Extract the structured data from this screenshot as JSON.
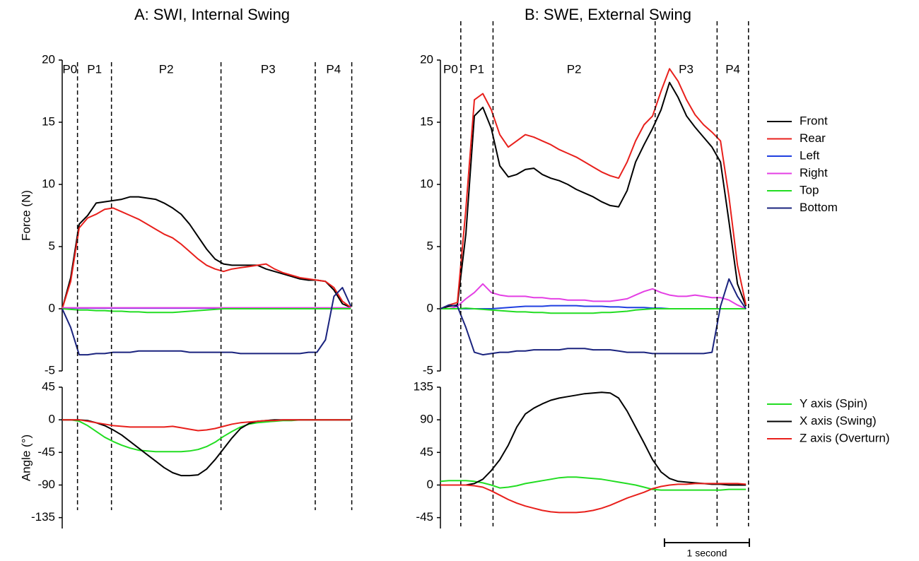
{
  "chart_data": [
    {
      "type": "line",
      "title": "A: SWI, Internal Swing",
      "ylabel": "Force (N)",
      "x": [
        0,
        0.1,
        0.2,
        0.3,
        0.4,
        0.5,
        0.6,
        0.7,
        0.8,
        0.9,
        1.0,
        1.1,
        1.2,
        1.3,
        1.4,
        1.5,
        1.6,
        1.7,
        1.8,
        1.9,
        2.0,
        2.1,
        2.2,
        2.3,
        2.4,
        2.5,
        2.6,
        2.7,
        2.8,
        2.9,
        3.0,
        3.1,
        3.2,
        3.3,
        3.4
      ],
      "xlim": [
        0,
        3.43
      ],
      "ylim": [
        -5,
        20
      ],
      "yticks": [
        -5,
        0,
        5,
        10,
        15,
        20
      ],
      "phases": {
        "labels": [
          "P0",
          "P1",
          "P2",
          "P3",
          "P4"
        ],
        "bounds": [
          0.18,
          0.58,
          1.87,
          2.98,
          3.41
        ]
      },
      "series": [
        {
          "color": "#000000",
          "values": [
            0,
            2.5,
            6.8,
            7.5,
            8.5,
            8.6,
            8.7,
            8.8,
            9.0,
            9.0,
            8.9,
            8.8,
            8.5,
            8.1,
            7.6,
            6.8,
            5.8,
            4.8,
            4.0,
            3.6,
            3.5,
            3.5,
            3.5,
            3.5,
            3.2,
            3.0,
            2.8,
            2.6,
            2.4,
            2.3,
            2.3,
            2.2,
            1.5,
            0.4,
            0.1
          ]
        },
        {
          "color": "#e8201c",
          "values": [
            0,
            2.2,
            6.5,
            7.3,
            7.6,
            8.0,
            8.1,
            7.8,
            7.5,
            7.2,
            6.8,
            6.4,
            6.0,
            5.7,
            5.2,
            4.6,
            4.0,
            3.5,
            3.2,
            3.0,
            3.2,
            3.3,
            3.4,
            3.5,
            3.6,
            3.2,
            2.9,
            2.7,
            2.5,
            2.4,
            2.3,
            2.2,
            1.7,
            0.6,
            0.1
          ]
        },
        {
          "color": "#1f3fe0",
          "values": [
            0.05,
            0.05,
            0.05,
            0.05,
            0.05,
            0.05,
            0.05,
            0.05,
            0.05,
            0.05,
            0.05,
            0.05,
            0.05,
            0.05,
            0.05,
            0.05,
            0.05,
            0.05,
            0.05,
            0.05,
            0.05,
            0.05,
            0.05,
            0.05,
            0.05,
            0.05,
            0.05,
            0.05,
            0.05,
            0.05,
            0.05,
            0.05,
            0.05,
            0.05,
            0.05
          ]
        },
        {
          "color": "#e43fe4",
          "values": [
            0.08,
            0.08,
            0.08,
            0.08,
            0.08,
            0.08,
            0.08,
            0.08,
            0.08,
            0.08,
            0.08,
            0.08,
            0.08,
            0.08,
            0.08,
            0.08,
            0.08,
            0.08,
            0.08,
            0.08,
            0.08,
            0.08,
            0.08,
            0.08,
            0.08,
            0.08,
            0.08,
            0.08,
            0.08,
            0.08,
            0.08,
            0.08,
            0.08,
            0.08,
            0.08
          ]
        },
        {
          "color": "#22dd22",
          "values": [
            0,
            -0.05,
            -0.1,
            -0.1,
            -0.15,
            -0.15,
            -0.2,
            -0.2,
            -0.25,
            -0.25,
            -0.3,
            -0.3,
            -0.3,
            -0.3,
            -0.25,
            -0.2,
            -0.15,
            -0.1,
            -0.05,
            0,
            0,
            0,
            0,
            0,
            0,
            0,
            0,
            0,
            0,
            0,
            0,
            0,
            0,
            0,
            0
          ]
        },
        {
          "color": "#1a237e",
          "values": [
            0,
            -1.5,
            -3.7,
            -3.7,
            -3.6,
            -3.6,
            -3.5,
            -3.5,
            -3.5,
            -3.4,
            -3.4,
            -3.4,
            -3.4,
            -3.4,
            -3.4,
            -3.5,
            -3.5,
            -3.5,
            -3.5,
            -3.5,
            -3.5,
            -3.6,
            -3.6,
            -3.6,
            -3.6,
            -3.6,
            -3.6,
            -3.6,
            -3.6,
            -3.5,
            -3.5,
            -2.5,
            1.0,
            1.7,
            0.2
          ]
        }
      ]
    },
    {
      "type": "line",
      "ylabel": "Angle (°)",
      "x": [
        0,
        0.1,
        0.2,
        0.3,
        0.4,
        0.5,
        0.6,
        0.7,
        0.8,
        0.9,
        1.0,
        1.1,
        1.2,
        1.3,
        1.4,
        1.5,
        1.6,
        1.7,
        1.8,
        1.9,
        2.0,
        2.1,
        2.2,
        2.3,
        2.4,
        2.5,
        2.6,
        2.7,
        2.8,
        2.9,
        3.0,
        3.1,
        3.2,
        3.3,
        3.4
      ],
      "xlim": [
        0,
        3.43
      ],
      "ylim": [
        -150,
        45
      ],
      "yticks": [
        -135,
        -90,
        -45,
        0,
        45
      ],
      "series": [
        {
          "color": "#22dd22",
          "values": [
            0,
            0,
            -2,
            -8,
            -16,
            -24,
            -30,
            -35,
            -39,
            -42,
            -43,
            -44,
            -44,
            -44,
            -44,
            -43,
            -41,
            -37,
            -31,
            -23,
            -16,
            -10,
            -6,
            -4,
            -3,
            -2,
            -1,
            -1,
            0,
            0,
            0,
            0,
            0,
            0,
            0
          ]
        },
        {
          "color": "#000000",
          "values": [
            0,
            0,
            0,
            -1,
            -4,
            -8,
            -14,
            -21,
            -30,
            -39,
            -48,
            -57,
            -66,
            -73,
            -77,
            -77,
            -76,
            -68,
            -55,
            -40,
            -25,
            -12,
            -5,
            -2,
            -1,
            0,
            0,
            0,
            0,
            0,
            0,
            0,
            0,
            0,
            0
          ]
        },
        {
          "color": "#e8201c",
          "values": [
            0,
            0,
            0,
            -2,
            -4,
            -6,
            -8,
            -9,
            -10,
            -10,
            -10,
            -10,
            -10,
            -9,
            -11,
            -13,
            -15,
            -14,
            -12,
            -9,
            -6,
            -4,
            -3,
            -2,
            -1,
            -1,
            0,
            0,
            0,
            0,
            0,
            0,
            0,
            0,
            0
          ]
        }
      ]
    },
    {
      "type": "line",
      "title": "B: SWE, External Swing",
      "x": [
        0,
        0.1,
        0.2,
        0.3,
        0.4,
        0.5,
        0.6,
        0.7,
        0.8,
        0.9,
        1.0,
        1.1,
        1.2,
        1.3,
        1.4,
        1.5,
        1.6,
        1.7,
        1.8,
        1.9,
        2.0,
        2.1,
        2.2,
        2.3,
        2.4,
        2.5,
        2.6,
        2.7,
        2.8,
        2.9,
        3.0,
        3.1,
        3.2,
        3.3,
        3.4,
        3.5,
        3.6
      ],
      "xlim": [
        0,
        3.64
      ],
      "ylim": [
        -5,
        20
      ],
      "yticks": [
        -5,
        0,
        5,
        10,
        15,
        20
      ],
      "legend": "right",
      "phases": {
        "labels": [
          "P0",
          "P1",
          "P2",
          "P3",
          "P4"
        ],
        "bounds": [
          0.24,
          0.62,
          2.53,
          3.26,
          3.63
        ]
      },
      "series": [
        {
          "name": "Front",
          "color": "#000000",
          "values": [
            0,
            0.2,
            0.3,
            6,
            15.5,
            16.2,
            14.5,
            11.5,
            10.6,
            10.8,
            11.2,
            11.3,
            10.8,
            10.5,
            10.3,
            10.0,
            9.6,
            9.3,
            9.0,
            8.6,
            8.3,
            8.2,
            9.5,
            11.8,
            13.2,
            14.5,
            16.0,
            18.2,
            17.0,
            15.5,
            14.6,
            13.8,
            13.0,
            11.8,
            7.0,
            2.0,
            0.2
          ]
        },
        {
          "name": "Rear",
          "color": "#e8201c",
          "values": [
            0,
            0.3,
            0.5,
            8,
            16.8,
            17.3,
            16.0,
            14.0,
            13.0,
            13.5,
            14.0,
            13.8,
            13.5,
            13.2,
            12.8,
            12.5,
            12.2,
            11.8,
            11.4,
            11.0,
            10.7,
            10.5,
            11.8,
            13.5,
            14.8,
            15.5,
            17.5,
            19.3,
            18.3,
            16.8,
            15.6,
            14.8,
            14.2,
            13.5,
            9.0,
            3.5,
            0.3
          ]
        },
        {
          "name": "Left",
          "color": "#1f3fe0",
          "values": [
            0,
            0,
            0,
            0,
            0,
            0,
            0,
            0.05,
            0.1,
            0.15,
            0.2,
            0.2,
            0.2,
            0.25,
            0.25,
            0.25,
            0.25,
            0.2,
            0.2,
            0.2,
            0.15,
            0.15,
            0.1,
            0.1,
            0.1,
            0.05,
            0.05,
            0,
            0,
            0,
            0,
            0,
            0,
            0,
            0,
            0,
            0
          ]
        },
        {
          "name": "Right",
          "color": "#e43fe4",
          "values": [
            0,
            0,
            0.2,
            0.8,
            1.3,
            2.0,
            1.3,
            1.1,
            1.0,
            1.0,
            1.0,
            0.9,
            0.9,
            0.8,
            0.8,
            0.7,
            0.7,
            0.7,
            0.6,
            0.6,
            0.6,
            0.7,
            0.8,
            1.1,
            1.4,
            1.6,
            1.3,
            1.1,
            1.0,
            1.0,
            1.1,
            1.0,
            0.9,
            0.9,
            0.7,
            0.3,
            0
          ]
        },
        {
          "name": "Top",
          "color": "#22dd22",
          "values": [
            0,
            0,
            0,
            0.05,
            0,
            -0.05,
            -0.1,
            -0.15,
            -0.2,
            -0.25,
            -0.25,
            -0.3,
            -0.3,
            -0.35,
            -0.35,
            -0.35,
            -0.35,
            -0.35,
            -0.35,
            -0.3,
            -0.3,
            -0.25,
            -0.2,
            -0.1,
            -0.05,
            0,
            0,
            0,
            0,
            0,
            0,
            0,
            0,
            0,
            0,
            0,
            0
          ]
        },
        {
          "name": "Bottom",
          "color": "#1a237e",
          "values": [
            0,
            0.3,
            0.2,
            -1.5,
            -3.5,
            -3.7,
            -3.6,
            -3.5,
            -3.5,
            -3.4,
            -3.4,
            -3.3,
            -3.3,
            -3.3,
            -3.3,
            -3.2,
            -3.2,
            -3.2,
            -3.3,
            -3.3,
            -3.3,
            -3.4,
            -3.5,
            -3.5,
            -3.5,
            -3.6,
            -3.6,
            -3.6,
            -3.6,
            -3.6,
            -3.6,
            -3.6,
            -3.5,
            0.2,
            2.4,
            1.0,
            0
          ]
        }
      ]
    },
    {
      "type": "line",
      "x": [
        0,
        0.1,
        0.2,
        0.3,
        0.4,
        0.5,
        0.6,
        0.7,
        0.8,
        0.9,
        1.0,
        1.1,
        1.2,
        1.3,
        1.4,
        1.5,
        1.6,
        1.7,
        1.8,
        1.9,
        2.0,
        2.1,
        2.2,
        2.3,
        2.4,
        2.5,
        2.6,
        2.7,
        2.8,
        2.9,
        3.0,
        3.1,
        3.2,
        3.3,
        3.4,
        3.5,
        3.6
      ],
      "xlim": [
        0,
        3.64
      ],
      "ylim": [
        -60,
        135
      ],
      "yticks": [
        -45,
        0,
        45,
        90,
        135
      ],
      "legend": "right",
      "scale_bar": {
        "value": 1,
        "label": "1 second"
      },
      "series": [
        {
          "name": "Y axis (Spin)",
          "color": "#22dd22",
          "values": [
            5,
            6,
            6,
            6,
            5,
            3,
            0,
            -4,
            -3,
            -1,
            2,
            4,
            6,
            8,
            10,
            11,
            11,
            10,
            9,
            8,
            6,
            4,
            2,
            0,
            -3,
            -6,
            -7,
            -7,
            -7,
            -7,
            -7,
            -7,
            -7,
            -7,
            -6,
            -6,
            -6
          ]
        },
        {
          "name": "X axis (Swing)",
          "color": "#000000",
          "values": [
            0,
            0,
            0,
            0,
            2,
            8,
            20,
            35,
            55,
            80,
            98,
            106,
            112,
            117,
            120,
            122,
            124,
            126,
            127,
            128,
            127,
            120,
            102,
            80,
            58,
            35,
            18,
            9,
            5,
            4,
            3,
            2,
            1,
            1,
            0,
            0,
            0
          ]
        },
        {
          "name": "Z axis (Overturn)",
          "color": "#e8201c",
          "values": [
            0,
            0,
            0,
            0,
            -1,
            -3,
            -8,
            -14,
            -20,
            -25,
            -29,
            -32,
            -35,
            -37,
            -38,
            -38,
            -38,
            -37,
            -35,
            -32,
            -28,
            -23,
            -18,
            -14,
            -10,
            -5,
            -2,
            0,
            1,
            1,
            2,
            2,
            2,
            2,
            2,
            2,
            1
          ]
        }
      ]
    }
  ]
}
